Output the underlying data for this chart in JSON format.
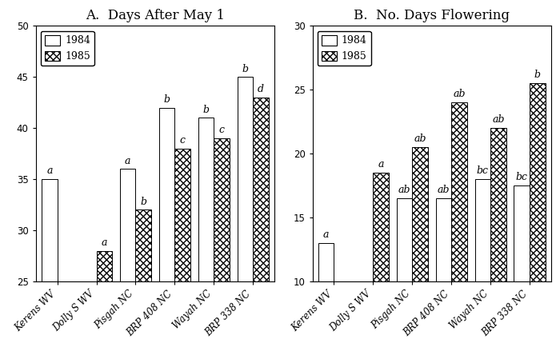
{
  "categories": [
    "Kerens WV",
    "Dolly S WV",
    "Pisgah NC",
    "BRP 408 NC",
    "Wayah NC",
    "BRP 338 NC"
  ],
  "chart_A": {
    "title": "A.  Days After May 1",
    "values_1984": [
      35.0,
      null,
      36.0,
      42.0,
      41.0,
      45.0
    ],
    "values_1985": [
      null,
      28.0,
      32.0,
      38.0,
      39.0,
      43.0
    ],
    "ylim": [
      25,
      50
    ],
    "yticks": [
      25,
      30,
      35,
      40,
      45,
      50
    ],
    "labels_1984": [
      "a",
      "",
      "a",
      "b",
      "b",
      "b"
    ],
    "labels_1985": [
      "",
      "a",
      "b",
      "c",
      "c",
      "d"
    ]
  },
  "chart_B": {
    "title": "B.  No. Days Flowering",
    "values_1984": [
      13.0,
      null,
      16.5,
      16.5,
      18.0,
      17.5
    ],
    "values_1985": [
      null,
      18.5,
      20.5,
      24.0,
      22.0,
      25.5
    ],
    "ylim": [
      10,
      30
    ],
    "yticks": [
      10,
      15,
      20,
      25,
      30
    ],
    "labels_1984": [
      "a",
      "",
      "ab",
      "ab",
      "bc",
      "bc"
    ],
    "labels_1985": [
      "",
      "a",
      "ab",
      "ab",
      "ab",
      "b"
    ]
  },
  "legend_labels": [
    "1984",
    "1985"
  ],
  "bar_width": 0.4,
  "color_1984": "white",
  "color_1985": "white",
  "hatch_1984": "",
  "hatch_1985": "xxxx",
  "edgecolor": "black",
  "title_fontsize": 12,
  "tick_fontsize": 8.5,
  "legend_fontsize": 9,
  "annotation_fontsize": 9
}
